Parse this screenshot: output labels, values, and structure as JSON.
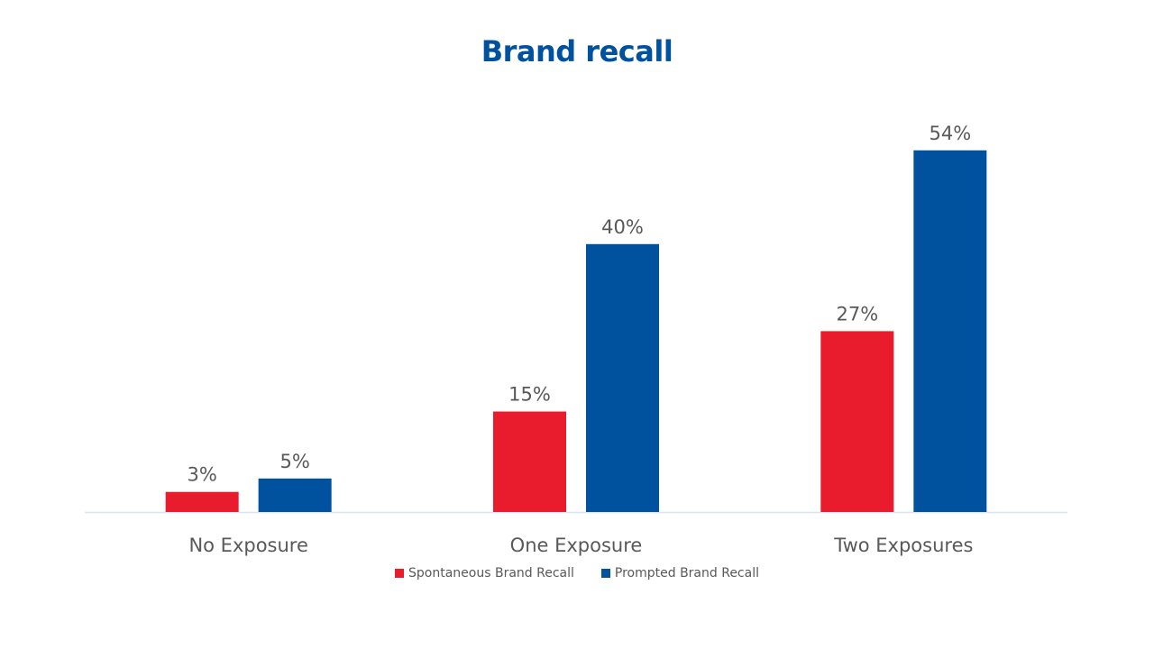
{
  "chart_data": {
    "type": "bar",
    "title": "Brand recall",
    "categories": [
      "No Exposure",
      "One Exposure",
      "Two Exposures"
    ],
    "series": [
      {
        "name": "Spontaneous Brand Recall",
        "values": [
          3,
          15,
          27
        ],
        "labels": [
          "3%",
          "15%",
          "27%"
        ],
        "color": "#e81c2d"
      },
      {
        "name": "Prompted Brand Recall",
        "values": [
          5,
          40,
          54
        ],
        "labels": [
          "5%",
          "40%",
          "54%"
        ],
        "color": "#00529f"
      }
    ],
    "ylim": [
      0,
      60
    ],
    "grid": false,
    "legend_position": "bottom-center",
    "title_color": "#00529f",
    "axis_line_color": "#d6e4f0"
  }
}
